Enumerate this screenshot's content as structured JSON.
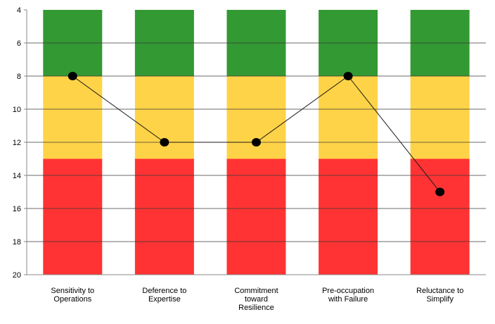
{
  "chart_data": {
    "type": "line",
    "categories": [
      [
        "Sensitivity to",
        "Operations"
      ],
      [
        "Deference to",
        "Expertise"
      ],
      [
        "Commitment",
        "toward",
        "Resilience"
      ],
      [
        "Pre-occupation",
        "with Failure"
      ],
      [
        "Reluctance to",
        "Simplify"
      ]
    ],
    "values": [
      8,
      12,
      12,
      8,
      15
    ],
    "y_axis": {
      "min": 4,
      "max": 20,
      "step": 2,
      "reversed": true,
      "ticks": [
        "4",
        "6",
        "8",
        "10",
        "12",
        "14",
        "16",
        "18",
        "20"
      ]
    },
    "bands": [
      {
        "from": 4,
        "to": 8,
        "color": "#339933"
      },
      {
        "from": 8,
        "to": 13,
        "color": "#FFD347"
      },
      {
        "from": 13,
        "to": 20,
        "color": "#FF3333"
      }
    ],
    "grid": true,
    "legend": "none",
    "title": "",
    "xlabel": "",
    "ylabel": ""
  }
}
